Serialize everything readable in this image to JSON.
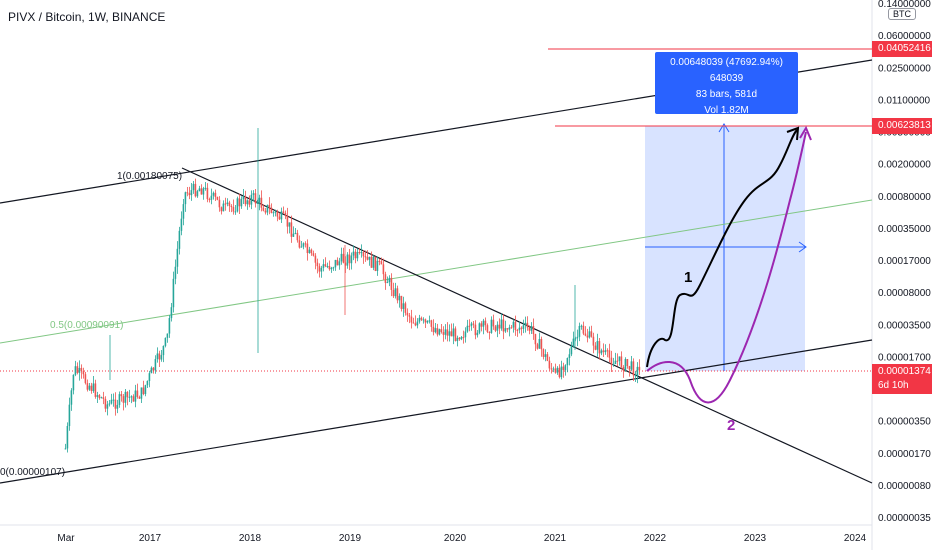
{
  "header": {
    "title": "PIVX / Bitcoin, 1W, BINANCE"
  },
  "currency_badge": "BTC",
  "measure": {
    "line1": "0.00648039 (47692.94%) 648039",
    "line2": "83 bars, 581d",
    "line3": "Vol 1.82M"
  },
  "current_price": {
    "value": "0.00001374",
    "countdown": "6d 10h"
  },
  "resistance_levels": [
    "0.04052416",
    "0.00623813"
  ],
  "fib_labels": [
    "1(0.00180075)",
    "0.5(0.00090091)",
    "0(0.00000107)"
  ],
  "scenario_labels": [
    "1",
    "2"
  ],
  "colors": {
    "up": "#26a69a",
    "down": "#ef5350",
    "accent": "#2962ff",
    "resistance": "#f23645",
    "scenario1": "#000000",
    "scenario2": "#9c27b0",
    "fib_mid": "#81c784"
  },
  "chart_data": {
    "type": "candlestick",
    "scale": "log",
    "x_ticks": [
      "Mar",
      "2017",
      "2018",
      "2019",
      "2020",
      "2021",
      "2022",
      "2023",
      "2024"
    ],
    "y_ticks": [
      "0.14000000",
      "0.06000000",
      "0.02500000",
      "0.01100000",
      "0.00500000",
      "0.00200000",
      "0.00080000",
      "0.00035000",
      "0.00017000",
      "0.00008000",
      "0.00003500",
      "0.00001700",
      "0.00000800",
      "0.00000350",
      "0.00000170",
      "0.00000080",
      "0.00000035"
    ],
    "ylim": [
      3.5e-07,
      0.14
    ],
    "series": [
      {
        "name": "",
        "approx_close_path": [
          {
            "x": "2016-03",
            "y": 2e-06
          },
          {
            "x": "2016-04",
            "y": 1.5e-05
          },
          {
            "x": "2016-08",
            "y": 6e-06
          },
          {
            "x": "2016-12",
            "y": 8e-06
          },
          {
            "x": "2017-03",
            "y": 3e-05
          },
          {
            "x": "2017-05",
            "y": 0.0012
          },
          {
            "x": "2017-07",
            "y": 0.0014
          },
          {
            "x": "2017-10",
            "y": 0.0008
          },
          {
            "x": "2018-01",
            "y": 0.0011
          },
          {
            "x": "2018-05",
            "y": 0.0006
          },
          {
            "x": "2018-09",
            "y": 0.00018
          },
          {
            "x": "2019-01",
            "y": 0.00025
          },
          {
            "x": "2019-04",
            "y": 0.0002
          },
          {
            "x": "2019-08",
            "y": 5e-05
          },
          {
            "x": "2020-01",
            "y": 3.5e-05
          },
          {
            "x": "2020-06",
            "y": 4.5e-05
          },
          {
            "x": "2020-10",
            "y": 4e-05
          },
          {
            "x": "2021-01",
            "y": 1.2e-05
          },
          {
            "x": "2021-04",
            "y": 4e-05
          },
          {
            "x": "2021-07",
            "y": 2e-05
          },
          {
            "x": "2021-11",
            "y": 1.374e-05
          }
        ]
      }
    ]
  }
}
